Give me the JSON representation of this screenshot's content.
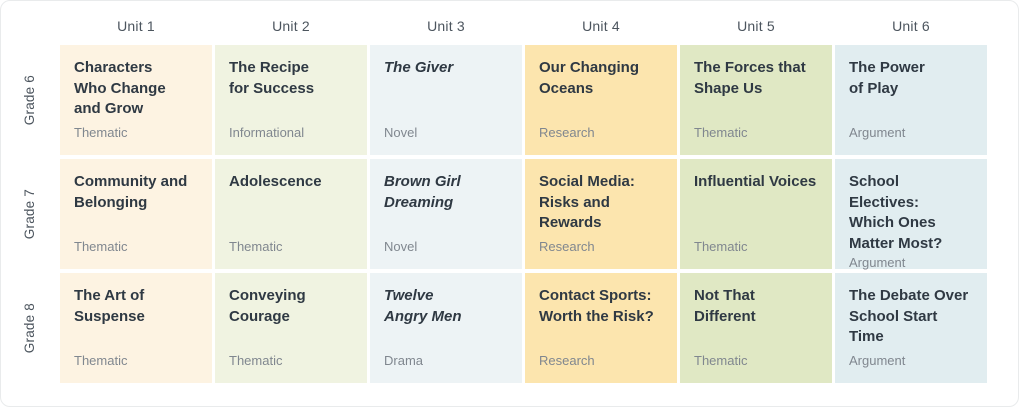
{
  "colors": {
    "card_background": "#ffffff",
    "card_border": "#e9ebec",
    "title_text": "#2f3943",
    "type_text": "#80878f",
    "header_text": "#4c555e",
    "columns": [
      "#fdf3e2",
      "#f0f3e1",
      "#edf3f5",
      "#fce5ae",
      "#e0e8c4",
      "#e1edf0"
    ]
  },
  "table": {
    "unit_headers": [
      "Unit 1",
      "Unit 2",
      "Unit 3",
      "Unit 4",
      "Unit 5",
      "Unit 6"
    ],
    "rows": [
      {
        "grade": "Grade 6",
        "cells": [
          {
            "title": "Characters\nWho Change\nand Grow",
            "type": "Thematic",
            "italic": false
          },
          {
            "title": "The Recipe\nfor Success",
            "type": "Informational",
            "italic": false
          },
          {
            "title": "The Giver",
            "type": "Novel",
            "italic": true
          },
          {
            "title": "Our Changing\nOceans",
            "type": "Research",
            "italic": false
          },
          {
            "title": "The Forces that\nShape Us",
            "type": "Thematic",
            "italic": false
          },
          {
            "title": "The Power\nof Play",
            "type": "Argument",
            "italic": false
          }
        ]
      },
      {
        "grade": "Grade 7",
        "cells": [
          {
            "title": "Community and\nBelonging",
            "type": "Thematic",
            "italic": false
          },
          {
            "title": "Adolescence",
            "type": "Thematic",
            "italic": false
          },
          {
            "title": "Brown Girl\nDreaming",
            "type": "Novel",
            "italic": true
          },
          {
            "title": "Social Media:\nRisks and\nRewards",
            "type": "Research",
            "italic": false
          },
          {
            "title": "Influential Voices",
            "type": "Thematic",
            "italic": false
          },
          {
            "title": "School Electives:\nWhich Ones\nMatter Most?",
            "type": "Argument",
            "italic": false
          }
        ]
      },
      {
        "grade": "Grade 8",
        "cells": [
          {
            "title": "The Art of\nSuspense",
            "type": "Thematic",
            "italic": false
          },
          {
            "title": "Conveying\nCourage",
            "type": "Thematic",
            "italic": false
          },
          {
            "title": "Twelve\nAngry Men",
            "type": "Drama",
            "italic": true
          },
          {
            "title": "Contact Sports:\nWorth the Risk?",
            "type": "Research",
            "italic": false
          },
          {
            "title": "Not That\nDifferent",
            "type": "Thematic",
            "italic": false
          },
          {
            "title": "The Debate Over\nSchool Start\nTime",
            "type": "Argument",
            "italic": false
          }
        ]
      }
    ]
  }
}
